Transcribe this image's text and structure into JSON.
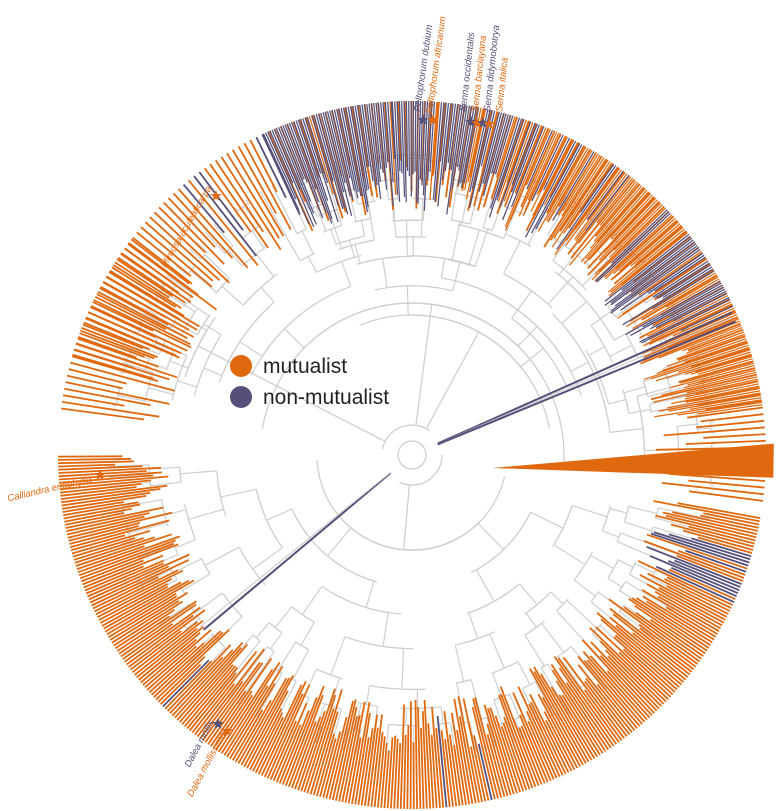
{
  "colors": {
    "mutualist": "#e0690f",
    "non_mutualist": "#55507a",
    "branch": "#cfcfcf",
    "background": "#ffffff"
  },
  "legend": {
    "items": [
      {
        "label": "mutualist",
        "color": "#e0690f"
      },
      {
        "label": "non-mutualist",
        "color": "#55507a"
      }
    ]
  },
  "labeled_tips": [
    {
      "name": "Mimosa aculeaticarpa",
      "state": "mutualist"
    },
    {
      "name": "Peltophorum africanum",
      "state": "mutualist"
    },
    {
      "name": "Peltophorum dubium",
      "state": "non-mutualist"
    },
    {
      "name": "Senna occidentalis",
      "state": "non-mutualist"
    },
    {
      "name": "Senna barclayana",
      "state": "mutualist"
    },
    {
      "name": "Senna didymobotrya",
      "state": "non-mutualist"
    },
    {
      "name": "Senna italica",
      "state": "mutualist"
    },
    {
      "name": "Calliandra eriophylla",
      "state": "mutualist"
    },
    {
      "name": "Dalea mollis",
      "state": "non-mutualist"
    },
    {
      "name": "Dalea mollissima",
      "state": "mutualist"
    }
  ],
  "clades": [
    {
      "name": "clade-a",
      "states": "MMMMMMMMMMMMMMMMMMMMMMMMMMMMMMMMMMMMMMMNMNNMMMMMMMMMNNMMMMMMMMMMMMMMMMMMMNMMMMMMMMMMMMMMMMMMMMMMMMMMMMMMMMMMMMMMMMMMMMMMMMMMMMMMMMMMMMMMMMMMMMMMMMMMMMMMMMMMMMMMMMMMMMM"
    },
    {
      "name": "clade-b",
      "states": "MMMMMMMMMMMMNNNNMNMMMNNNNNMNMMMMMMMMMMMMMMMMMMMMMMMMMMMMMMMMMMMMMMMMMMMMMMMMMMMMMMMMMMMMMMMMMMMMMMMMMMMMMMMMMMMMMMMMMMMMMMMMMMNMMMMMMMMMMMMMNMMMMMMMMMMMMMMMMMMMMMMMMMMMMMMMMMMMMMMMMMMMMMMMMMMMMMMMMMMMMMMMMMMMMMMMMMMMMMMMMMMMMMMMMMMMMMMNMMMMMMMMMMMMMMMMMMMMMMMMMMMMMMMMMMMMMMMMMMMMMMMMMMMMMMMMMMMMMMMMMMMMMMMMMMMMMMMMMMMMM"
    },
    {
      "name": "clade-c",
      "states": "MMMMMMMMMMMMMMMMMMMMMMMM"
    },
    {
      "name": "clade-d",
      "states": "NNNNNNNNNNNNNNNNNNNNNMNNNNNNNNNNNNNNNNNNNNNNNNNNNNNNNNNNMNNNNNNNNNNNNNNNNNNNMMNNNNNNNNNNNNNNNNNMMMNNNNMNNNNNNNMMNNNMMNMNNNMNMMMNMMMMNMMNMMNMNNMMMMMNMMMMMMMMMNNMMMNMMNMMMMMMMMMMMMMMMMMMMMMNNNMMMMMMMMMMMNNNNNNNNNMNNNMNNNNNNMMMMNNNNNNNMNNMMNMMMMMMMMMMMMMMMMMMMMMMMMMMMMMMMMMMMMMMMMMMMM"
    }
  ]
}
